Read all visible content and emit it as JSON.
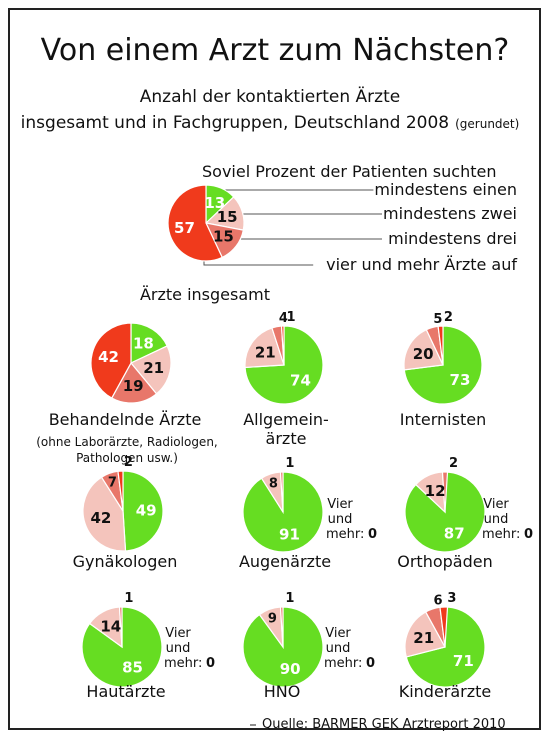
{
  "title": "Von einem Arzt zum Nächsten?",
  "subtitle_line1": "Anzahl der kontaktierten Ärzte",
  "subtitle_line2": "insgesamt und in Fachgruppen, Deutschland 2008",
  "subtitle_note": "(gerundet)",
  "legend": {
    "heading": "Soviel Prozent der Patienten suchten",
    "items": [
      "mindestens einen",
      "mindestens zwei",
      "mindestens drei",
      "vier und mehr Ärzte auf"
    ]
  },
  "colors": {
    "one": "#66dd22",
    "two": "#f4c4bc",
    "three": "#e8776a",
    "four": "#f03a1c"
  },
  "vier_label": [
    "Vier",
    "und",
    "mehr:"
  ],
  "source": "Quelle: BARMER GEK Arztreport 2010",
  "chart_data": [
    {
      "type": "pie",
      "name": "Ärzte insgesamt",
      "categories": [
        "mindestens einen",
        "mindestens zwei",
        "mindestens drei",
        "vier und mehr Ärzte auf"
      ],
      "values": [
        13,
        15,
        15,
        57
      ]
    },
    {
      "type": "pie",
      "name": "Behandelnde Ärzte",
      "note": "(ohne Laborärzte, Radiologen, Pathologen usw.)",
      "values": [
        18,
        21,
        19,
        42
      ]
    },
    {
      "type": "pie",
      "name": "Allgemein-ärzte",
      "values": [
        74,
        21,
        4,
        1
      ]
    },
    {
      "type": "pie",
      "name": "Internisten",
      "values": [
        73,
        20,
        5,
        2
      ]
    },
    {
      "type": "pie",
      "name": "Gynäkologen",
      "values": [
        49,
        42,
        7,
        2
      ]
    },
    {
      "type": "pie",
      "name": "Augenärzte",
      "values": [
        91,
        8,
        1,
        0
      ]
    },
    {
      "type": "pie",
      "name": "Orthopäden",
      "values": [
        87,
        12,
        2,
        0
      ]
    },
    {
      "type": "pie",
      "name": "Hautärzte",
      "values": [
        85,
        14,
        1,
        0
      ]
    },
    {
      "type": "pie",
      "name": "HNO",
      "values": [
        90,
        9,
        1,
        0
      ]
    },
    {
      "type": "pie",
      "name": "Kinderärzte",
      "values": [
        71,
        21,
        6,
        3
      ]
    }
  ]
}
